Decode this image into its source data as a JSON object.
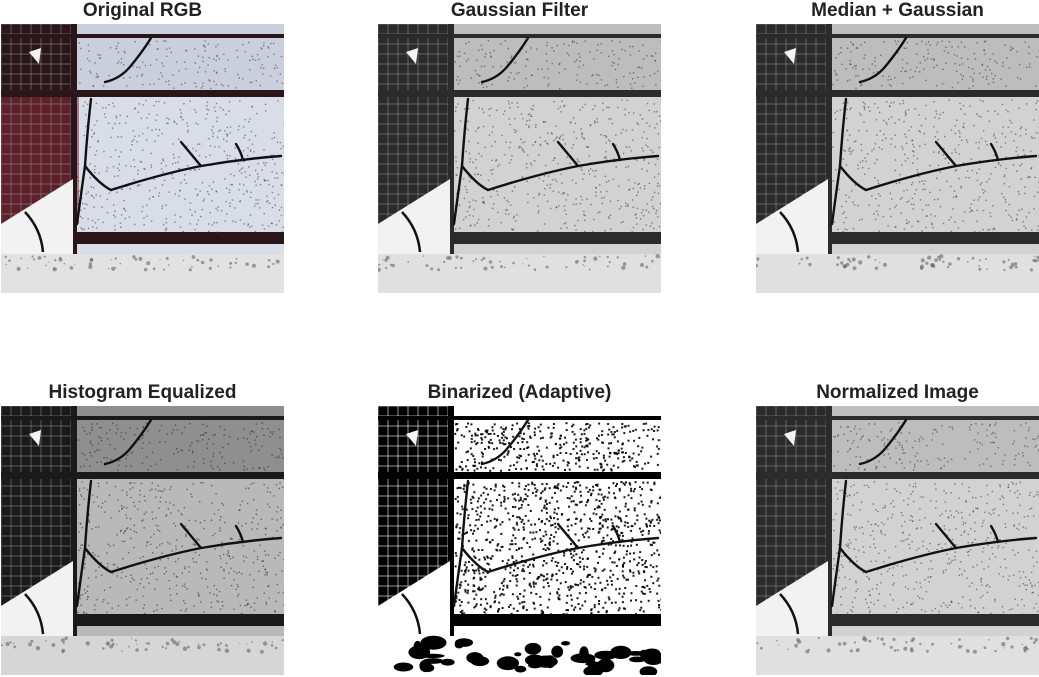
{
  "figure": {
    "panels": [
      {
        "title": "Original RGB",
        "filter": "color"
      },
      {
        "title": "Gaussian Filter",
        "filter": "gray"
      },
      {
        "title": "Median + Gaussian",
        "filter": "gray"
      },
      {
        "title": "Histogram Equalized",
        "filter": "equalized"
      },
      {
        "title": "Binarized (Adaptive)",
        "filter": "binary"
      },
      {
        "title": "Normalized Image",
        "filter": "gray"
      }
    ]
  },
  "colors": {
    "background": "#ffffff",
    "title_text": "#222222",
    "crack": "#111111",
    "rust_accent": "#8a2a3a"
  }
}
